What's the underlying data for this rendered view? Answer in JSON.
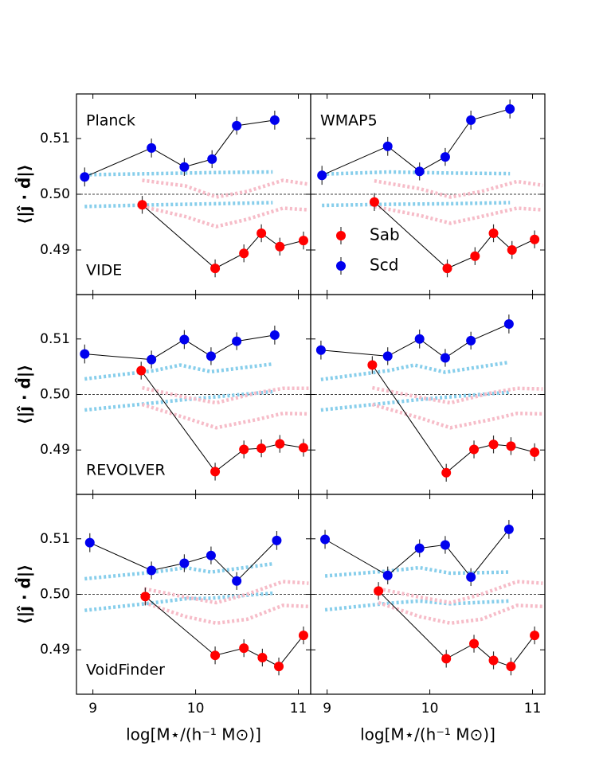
{
  "chart_data": [
    {
      "type": "line",
      "annotations": [
        {
          "text": "Planck",
          "loc": "upper left"
        },
        {
          "text": "VIDE",
          "loc": "lower left"
        }
      ],
      "ylabel": "⟨|ĵ · d̂|⟩",
      "xlim": [
        8.84,
        11.12
      ],
      "ylim": [
        0.482,
        0.518
      ],
      "xticks": [
        9,
        10,
        11
      ],
      "yticks": [
        0.49,
        {
          "value": 0.5,
          "label": "0.50"
        },
        0.51
      ],
      "show_xtick_labels": false,
      "show_ytick_labels": true,
      "hline": 0.5,
      "series": [
        {
          "color": "#87ceeb",
          "style": "dotted",
          "x": [
            8.92,
            9.6,
            10.2,
            10.75
          ],
          "values": [
            0.5035,
            0.5037,
            0.5039,
            0.504
          ]
        },
        {
          "color": "#87ceeb",
          "style": "dotted",
          "x": [
            8.92,
            9.6,
            10.2,
            10.75
          ],
          "values": [
            0.4978,
            0.4981,
            0.4983,
            0.4985
          ]
        },
        {
          "color": "#f6bcc8",
          "style": "dotted",
          "x": [
            9.48,
            9.9,
            10.2,
            10.5,
            10.85,
            11.1
          ],
          "values": [
            0.5025,
            0.5015,
            0.4995,
            0.5005,
            0.5025,
            0.5018
          ]
        },
        {
          "color": "#f6bcc8",
          "style": "dotted",
          "x": [
            9.48,
            9.9,
            10.2,
            10.5,
            10.85,
            11.1
          ],
          "values": [
            0.4978,
            0.496,
            0.4942,
            0.4955,
            0.4975,
            0.4972
          ]
        },
        {
          "color": "#0000ee",
          "style": "points",
          "x": [
            8.92,
            9.57,
            9.89,
            10.16,
            10.4,
            10.77
          ],
          "values": [
            0.5031,
            0.5083,
            0.5049,
            0.5063,
            0.5123,
            0.5133
          ],
          "errors": [
            0.0017,
            0.0017,
            0.0016,
            0.0016,
            0.0016,
            0.0017
          ]
        },
        {
          "color": "#ff0000",
          "style": "points",
          "x": [
            9.48,
            10.19,
            10.47,
            10.64,
            10.82,
            11.05
          ],
          "values": [
            0.4981,
            0.4867,
            0.4894,
            0.493,
            0.4906,
            0.4917
          ],
          "errors": [
            0.0016,
            0.0016,
            0.0016,
            0.0016,
            0.0016,
            0.0016
          ]
        }
      ]
    },
    {
      "type": "line",
      "annotations": [
        {
          "text": "WMAP5",
          "loc": "upper left"
        }
      ],
      "xlim": [
        8.84,
        11.12
      ],
      "ylim": [
        0.482,
        0.518
      ],
      "xticks": [
        9,
        10,
        11
      ],
      "yticks": [
        0.49,
        {
          "value": 0.5,
          "label": "0.50"
        },
        0.51
      ],
      "show_xtick_labels": false,
      "show_ytick_labels": false,
      "hline": 0.5,
      "legend": "lower left",
      "series": [
        {
          "color": "#87ceeb",
          "style": "dotted",
          "x": [
            8.95,
            9.6,
            10.2,
            10.78
          ],
          "values": [
            0.5036,
            0.504,
            0.5038,
            0.5037
          ]
        },
        {
          "color": "#87ceeb",
          "style": "dotted",
          "x": [
            8.95,
            9.6,
            10.2,
            10.78
          ],
          "values": [
            0.498,
            0.4982,
            0.4983,
            0.4985
          ]
        },
        {
          "color": "#f6bcc8",
          "style": "dotted",
          "x": [
            9.46,
            9.9,
            10.2,
            10.5,
            10.85,
            11.1
          ],
          "values": [
            0.5024,
            0.501,
            0.4995,
            0.5005,
            0.5023,
            0.5016
          ]
        },
        {
          "color": "#f6bcc8",
          "style": "dotted",
          "x": [
            9.46,
            9.9,
            10.2,
            10.5,
            10.85,
            11.1
          ],
          "values": [
            0.4978,
            0.4962,
            0.4948,
            0.496,
            0.4975,
            0.4972
          ]
        },
        {
          "name": "Sab",
          "color": "#ff0000",
          "style": "points",
          "x": [
            9.46,
            10.17,
            10.44,
            10.62,
            10.8,
            11.02
          ],
          "values": [
            0.4986,
            0.4867,
            0.4889,
            0.493,
            0.49,
            0.4919
          ],
          "errors": [
            0.0016,
            0.0016,
            0.0016,
            0.0016,
            0.0016,
            0.0016
          ]
        },
        {
          "name": "Scd",
          "color": "#0000ee",
          "style": "points",
          "x": [
            8.95,
            9.59,
            9.9,
            10.15,
            10.4,
            10.78
          ],
          "values": [
            0.5034,
            0.5086,
            0.5041,
            0.5067,
            0.5133,
            0.5153
          ],
          "errors": [
            0.0017,
            0.0017,
            0.0016,
            0.0016,
            0.0017,
            0.0017
          ]
        }
      ]
    },
    {
      "type": "line",
      "annotations": [
        {
          "text": "REVOLVER",
          "loc": "lower left"
        }
      ],
      "ylabel": "⟨|ĵ · d̂|⟩",
      "xlim": [
        8.84,
        11.12
      ],
      "ylim": [
        0.482,
        0.518
      ],
      "xticks": [
        9,
        10,
        11
      ],
      "yticks": [
        0.49,
        {
          "value": 0.5,
          "label": "0.50"
        },
        0.51
      ],
      "show_xtick_labels": false,
      "show_ytick_labels": true,
      "hline": 0.5,
      "series": [
        {
          "color": "#87ceeb",
          "style": "dotted",
          "x": [
            8.92,
            9.6,
            9.85,
            10.15,
            10.75
          ],
          "values": [
            0.5028,
            0.5043,
            0.5053,
            0.5041,
            0.5055
          ]
        },
        {
          "color": "#87ceeb",
          "style": "dotted",
          "x": [
            8.92,
            9.6,
            9.85,
            10.15,
            10.75
          ],
          "values": [
            0.4972,
            0.4985,
            0.499,
            0.4995,
            0.5005
          ]
        },
        {
          "color": "#f6bcc8",
          "style": "dotted",
          "x": [
            9.48,
            9.9,
            10.2,
            10.6,
            10.85,
            11.1
          ],
          "values": [
            0.5012,
            0.4995,
            0.4985,
            0.5003,
            0.5011,
            0.5011
          ]
        },
        {
          "color": "#f6bcc8",
          "style": "dotted",
          "x": [
            9.48,
            9.9,
            10.2,
            10.6,
            10.85,
            11.1
          ],
          "values": [
            0.4982,
            0.4958,
            0.494,
            0.4955,
            0.4966,
            0.4965
          ]
        },
        {
          "color": "#0000ee",
          "style": "points",
          "x": [
            8.92,
            9.57,
            9.89,
            10.15,
            10.4,
            10.77
          ],
          "values": [
            0.5073,
            0.5063,
            0.5099,
            0.5069,
            0.5096,
            0.5107
          ],
          "errors": [
            0.0017,
            0.0016,
            0.0017,
            0.0016,
            0.0016,
            0.0017
          ]
        },
        {
          "color": "#ff0000",
          "style": "points",
          "x": [
            9.47,
            10.19,
            10.47,
            10.64,
            10.82,
            11.05
          ],
          "values": [
            0.5043,
            0.4861,
            0.4901,
            0.4903,
            0.4911,
            0.4904
          ],
          "errors": [
            0.0016,
            0.0016,
            0.0016,
            0.0016,
            0.0016,
            0.0016
          ]
        }
      ]
    },
    {
      "type": "line",
      "annotations": [],
      "xlim": [
        8.84,
        11.12
      ],
      "ylim": [
        0.482,
        0.518
      ],
      "xticks": [
        9,
        10,
        11
      ],
      "yticks": [
        0.49,
        {
          "value": 0.5,
          "label": "0.50"
        },
        0.51
      ],
      "show_xtick_labels": false,
      "show_ytick_labels": false,
      "hline": 0.5,
      "series": [
        {
          "color": "#87ceeb",
          "style": "dotted",
          "x": [
            8.94,
            9.6,
            9.85,
            10.15,
            10.77
          ],
          "values": [
            0.5027,
            0.5043,
            0.5053,
            0.504,
            0.5058
          ]
        },
        {
          "color": "#87ceeb",
          "style": "dotted",
          "x": [
            8.94,
            9.6,
            9.85,
            10.15,
            10.77
          ],
          "values": [
            0.4972,
            0.4985,
            0.499,
            0.4995,
            0.5004
          ]
        },
        {
          "color": "#f6bcc8",
          "style": "dotted",
          "x": [
            9.44,
            9.9,
            10.2,
            10.6,
            10.85,
            11.1
          ],
          "values": [
            0.5012,
            0.4995,
            0.4985,
            0.5003,
            0.5011,
            0.501
          ]
        },
        {
          "color": "#f6bcc8",
          "style": "dotted",
          "x": [
            9.44,
            9.9,
            10.2,
            10.6,
            10.85,
            11.1
          ],
          "values": [
            0.4982,
            0.4958,
            0.494,
            0.4955,
            0.4966,
            0.4965
          ]
        },
        {
          "color": "#0000ee",
          "style": "points",
          "x": [
            8.94,
            9.59,
            9.9,
            10.15,
            10.4,
            10.77
          ],
          "values": [
            0.508,
            0.5069,
            0.51,
            0.5066,
            0.5097,
            0.5127
          ],
          "errors": [
            0.0017,
            0.0016,
            0.0017,
            0.0016,
            0.0016,
            0.0017
          ]
        },
        {
          "color": "#ff0000",
          "style": "points",
          "x": [
            9.44,
            10.16,
            10.43,
            10.62,
            10.79,
            11.02
          ],
          "values": [
            0.5053,
            0.4859,
            0.4901,
            0.491,
            0.4907,
            0.4896
          ],
          "errors": [
            0.0016,
            0.0016,
            0.0016,
            0.0016,
            0.0016,
            0.0016
          ]
        }
      ]
    },
    {
      "type": "line",
      "annotations": [
        {
          "text": "VoidFinder",
          "loc": "lower left"
        }
      ],
      "ylabel": "⟨|ĵ · d̂|⟩",
      "xlabel": "log[M⋆/(h⁻¹ M⊙)]",
      "xlim": [
        8.84,
        11.12
      ],
      "ylim": [
        0.482,
        0.518
      ],
      "xticks": [
        9,
        10,
        11
      ],
      "yticks": [
        0.49,
        {
          "value": 0.5,
          "label": "0.50"
        },
        0.51
      ],
      "show_xtick_labels": true,
      "show_ytick_labels": true,
      "hline": 0.5,
      "series": [
        {
          "color": "#87ceeb",
          "style": "dotted",
          "x": [
            8.92,
            9.6,
            9.9,
            10.15,
            10.75
          ],
          "values": [
            0.5028,
            0.504,
            0.5048,
            0.504,
            0.5055
          ]
        },
        {
          "color": "#87ceeb",
          "style": "dotted",
          "x": [
            8.92,
            9.6,
            9.9,
            10.15,
            10.75
          ],
          "values": [
            0.4971,
            0.4985,
            0.4992,
            0.4993,
            0.5002
          ]
        },
        {
          "color": "#f6bcc8",
          "style": "dotted",
          "x": [
            9.5,
            9.9,
            10.2,
            10.5,
            10.85,
            11.1
          ],
          "values": [
            0.501,
            0.4995,
            0.4985,
            0.5,
            0.5023,
            0.502
          ]
        },
        {
          "color": "#f6bcc8",
          "style": "dotted",
          "x": [
            9.5,
            9.9,
            10.2,
            10.5,
            10.85,
            11.1
          ],
          "values": [
            0.4985,
            0.496,
            0.4948,
            0.4955,
            0.498,
            0.4978
          ]
        },
        {
          "color": "#0000ee",
          "style": "points",
          "x": [
            8.97,
            9.57,
            9.89,
            10.15,
            10.4,
            10.79
          ],
          "values": [
            0.5093,
            0.5043,
            0.5056,
            0.507,
            0.5024,
            0.5097
          ],
          "errors": [
            0.0017,
            0.0016,
            0.0016,
            0.0016,
            0.0016,
            0.0017
          ]
        },
        {
          "color": "#ff0000",
          "style": "points",
          "x": [
            9.51,
            10.19,
            10.47,
            10.65,
            10.81,
            11.05
          ],
          "values": [
            0.4996,
            0.489,
            0.4903,
            0.4886,
            0.487,
            0.4926
          ],
          "errors": [
            0.0016,
            0.0016,
            0.0016,
            0.0016,
            0.0016,
            0.0016
          ]
        }
      ]
    },
    {
      "type": "line",
      "annotations": [],
      "xlabel": "log[M⋆/(h⁻¹ M⊙)]",
      "xlim": [
        8.84,
        11.12
      ],
      "ylim": [
        0.482,
        0.518
      ],
      "xticks": [
        9,
        10,
        11
      ],
      "yticks": [
        0.49,
        {
          "value": 0.5,
          "label": "0.50"
        },
        0.51
      ],
      "show_xtick_labels": true,
      "show_ytick_labels": false,
      "hline": 0.5,
      "series": [
        {
          "color": "#87ceeb",
          "style": "dotted",
          "x": [
            8.98,
            9.6,
            9.9,
            10.2,
            10.77
          ],
          "values": [
            0.5033,
            0.5042,
            0.5048,
            0.5038,
            0.504
          ]
        },
        {
          "color": "#87ceeb",
          "style": "dotted",
          "x": [
            8.98,
            9.6,
            9.9,
            10.2,
            10.77
          ],
          "values": [
            0.4972,
            0.4984,
            0.4988,
            0.4983,
            0.4988
          ]
        },
        {
          "color": "#f6bcc8",
          "style": "dotted",
          "x": [
            9.5,
            9.9,
            10.2,
            10.5,
            10.85,
            11.1
          ],
          "values": [
            0.501,
            0.4995,
            0.4985,
            0.5,
            0.5023,
            0.502
          ]
        },
        {
          "color": "#f6bcc8",
          "style": "dotted",
          "x": [
            9.5,
            9.9,
            10.2,
            10.5,
            10.85,
            11.1
          ],
          "values": [
            0.4985,
            0.496,
            0.4948,
            0.4955,
            0.498,
            0.4978
          ]
        },
        {
          "color": "#0000ee",
          "style": "points",
          "x": [
            8.98,
            9.59,
            9.9,
            10.15,
            10.4,
            10.77
          ],
          "values": [
            0.5099,
            0.5034,
            0.5083,
            0.5089,
            0.5031,
            0.5117
          ],
          "errors": [
            0.0017,
            0.0016,
            0.0016,
            0.0016,
            0.0016,
            0.0017
          ]
        },
        {
          "color": "#ff0000",
          "style": "points",
          "x": [
            9.5,
            10.16,
            10.43,
            10.62,
            10.79,
            11.02
          ],
          "values": [
            0.5006,
            0.4884,
            0.4911,
            0.4881,
            0.487,
            0.4926
          ],
          "errors": [
            0.0016,
            0.0016,
            0.0016,
            0.0016,
            0.0016,
            0.0016
          ]
        }
      ]
    }
  ]
}
